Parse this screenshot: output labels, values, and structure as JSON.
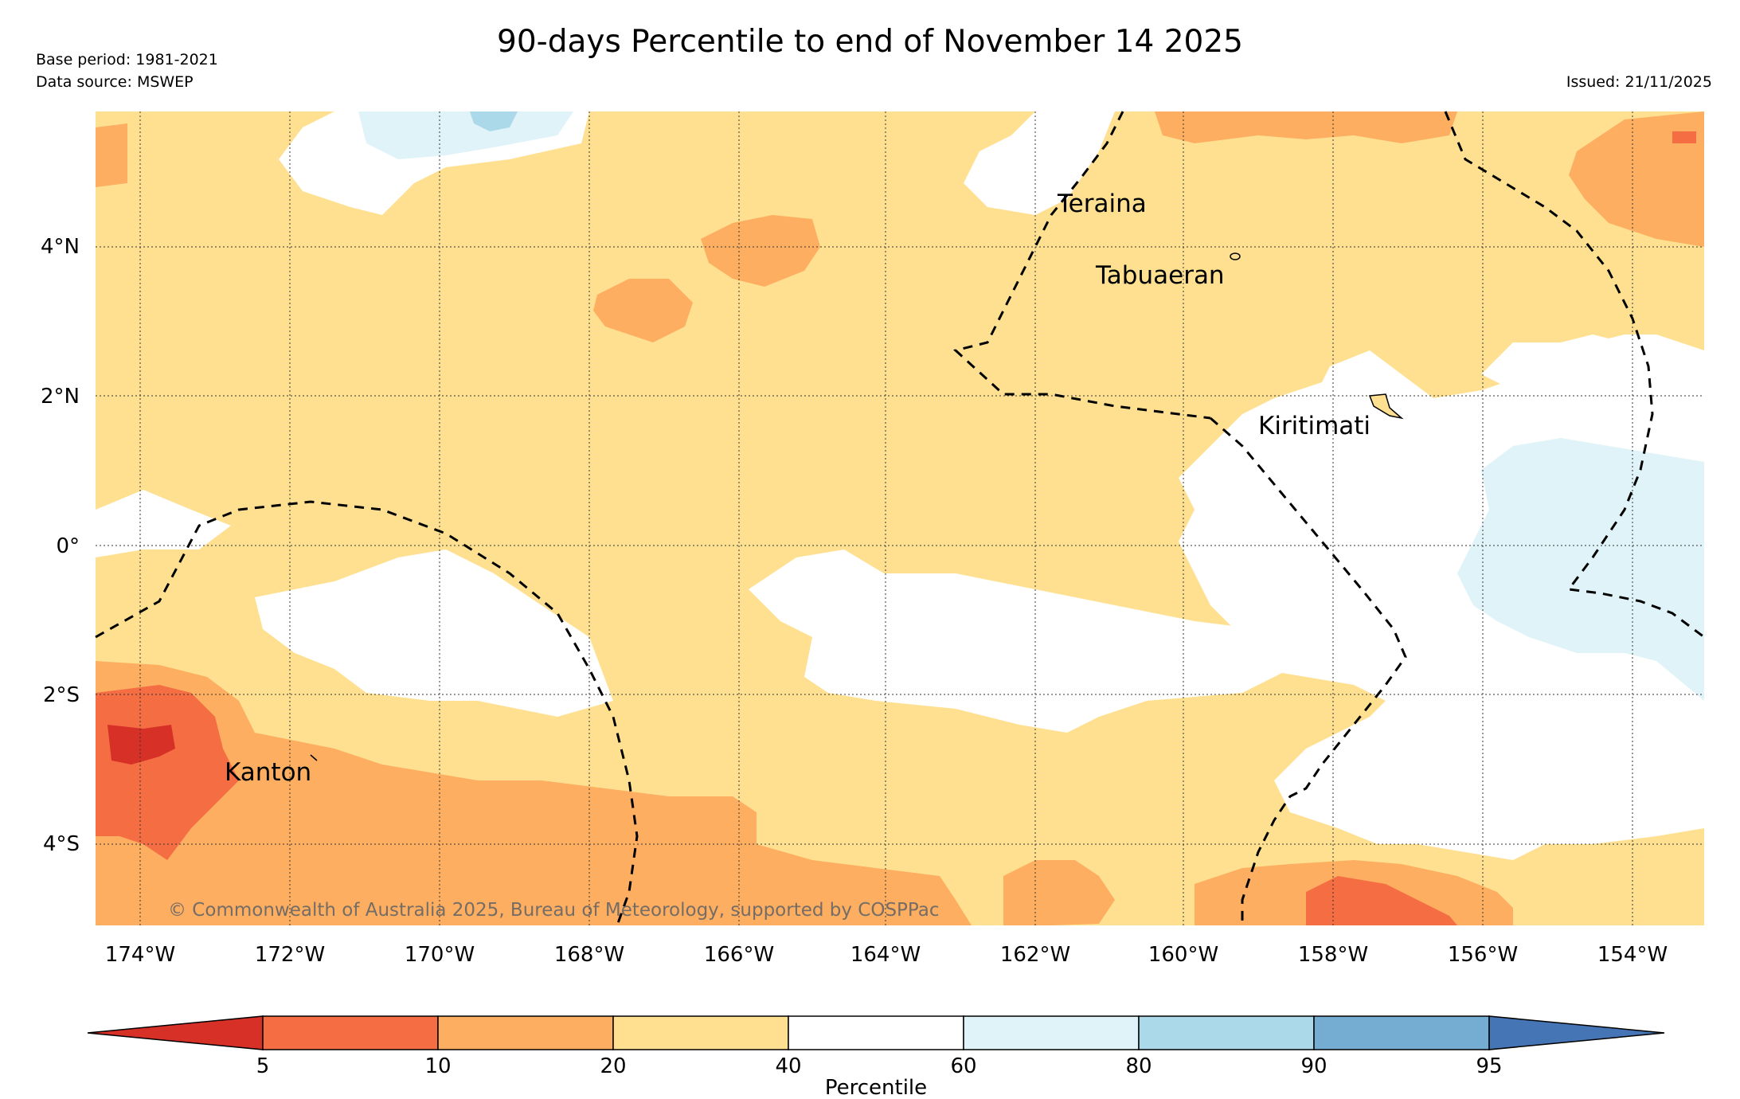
{
  "header": {
    "title": "90-days Percentile to end of November 14 2025",
    "base_period": "Base period: 1981-2021",
    "data_source": "Data source: MSWEP",
    "issued": "Issued: 21/11/2025"
  },
  "map": {
    "lon_labels": [
      "174°W",
      "172°W",
      "170°W",
      "168°W",
      "166°W",
      "164°W",
      "162°W",
      "160°W",
      "158°W",
      "156°W",
      "154°W"
    ],
    "lat_labels": [
      "4°N",
      "2°N",
      "0°",
      "2°S",
      "4°S"
    ],
    "places": [
      "Teraina",
      "Tabuaeran",
      "Kiritimati",
      "Kanton"
    ],
    "copyright": "© Commonwealth of Australia 2025, Bureau of Meteorology, supported by COSPPac"
  },
  "colors": {
    "below_5": "#d73027",
    "p5_10": "#f46d43",
    "p10_20": "#fdae61",
    "p20_40": "#fee090",
    "p40_60": "#ffffff",
    "p60_80": "#e0f3f8",
    "p80_90": "#abd9e9",
    "p90_95": "#74add1",
    "above_95": "#4575b4"
  },
  "colorbar": {
    "ticks": [
      "5",
      "10",
      "20",
      "40",
      "60",
      "80",
      "90",
      "95"
    ],
    "label": "Percentile"
  }
}
